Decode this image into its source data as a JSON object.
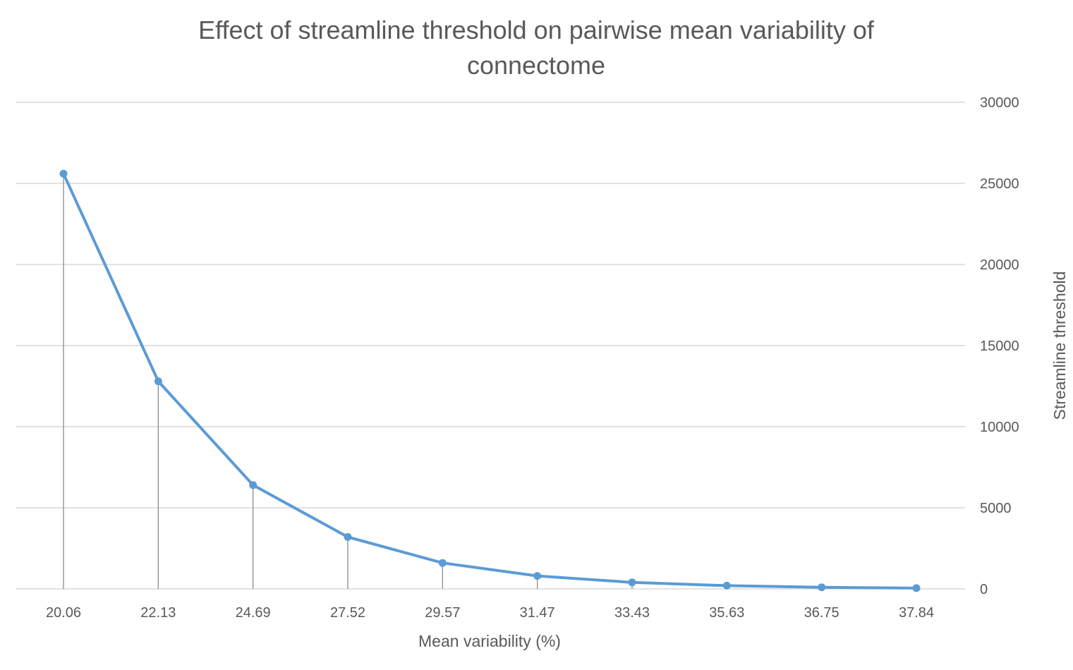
{
  "chart_data": {
    "type": "line",
    "title_lines": [
      "Effect of streamline threshold on pairwise mean variability of",
      "connectome"
    ],
    "xlabel": "Mean variability (%)",
    "ylabel": "Streamline threshold",
    "categories": [
      "20.06",
      "22.13",
      "24.69",
      "27.52",
      "29.57",
      "31.47",
      "33.43",
      "35.63",
      "36.75",
      "37.84"
    ],
    "series": [
      {
        "name": "Streamline threshold",
        "values": [
          25600,
          12800,
          6400,
          3200,
          1600,
          800,
          400,
          200,
          100,
          50
        ]
      }
    ],
    "ylim": [
      0,
      30000
    ],
    "yticks": [
      0,
      5000,
      10000,
      15000,
      20000,
      25000,
      30000
    ],
    "y_axis_side": "right",
    "grid": true,
    "drop_lines": true,
    "legend": "none",
    "colors": {
      "series": "#5b9bd5",
      "grid": "#d9d9d9",
      "dropline": "#8c8c8c",
      "text": "#595959"
    }
  }
}
